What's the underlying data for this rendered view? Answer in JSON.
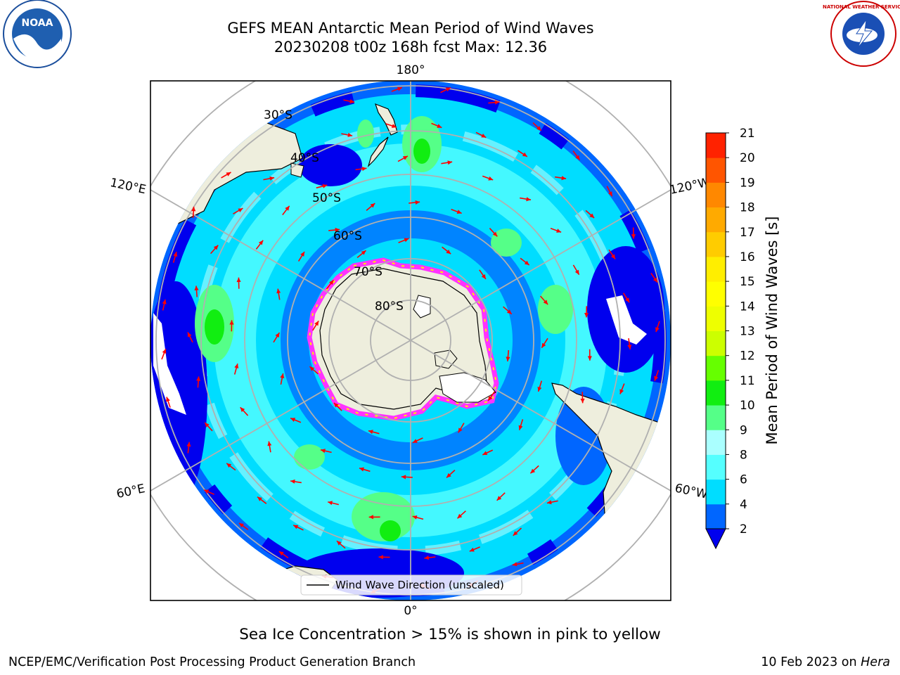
{
  "header": {
    "title_line1": "GEFS MEAN Antarctic Mean Period of Wind Waves",
    "title_line2": "20230208 t00z 168h fcst   Max: 12.36"
  },
  "logos": {
    "left": {
      "name": "noaa-logo",
      "text": "NOAA"
    },
    "right": {
      "name": "nws-logo",
      "text": "NATIONAL WEATHER SERVICE"
    }
  },
  "map": {
    "meridian_labels": {
      "top": "180°",
      "bottom": "0°",
      "upper_left": "120°E",
      "upper_right": "120°W",
      "lower_left": "60°E",
      "lower_right": "60°W"
    },
    "latitude_labels": [
      "30°S",
      "40°S",
      "50°S",
      "60°S",
      "70°S",
      "80°S"
    ],
    "legend_label": "Wind Wave Direction (unscaled)",
    "colors": {
      "land": "#eeeedd",
      "ice_edge": "#ff33ff",
      "arrow": "#ff0000",
      "grid": "#b0b0b0"
    }
  },
  "colorbar": {
    "title": "Mean Period of Wind Waves [s]",
    "ticks": [
      "2",
      "4",
      "6",
      "8",
      "9",
      "10",
      "11",
      "12",
      "13",
      "14",
      "15",
      "16",
      "17",
      "18",
      "19",
      "20",
      "21"
    ],
    "colors": [
      "#0066ff",
      "#00ddff",
      "#55ffff",
      "#aaffff",
      "#55ff88",
      "#11ee11",
      "#66ff00",
      "#ccff00",
      "#eeff00",
      "#ffff00",
      "#ffee00",
      "#ffcc00",
      "#ffaa00",
      "#ff8800",
      "#ff5500",
      "#ff2200",
      "#ff0000"
    ],
    "under_color": "#0000ee"
  },
  "footer": {
    "note": "Sea Ice Concentration > 15% is shown in pink to yellow",
    "left": "NCEP/EMC/Verification Post Processing Product Generation Branch",
    "right_prefix": "10 Feb 2023 on ",
    "right_italic": "Hera"
  }
}
